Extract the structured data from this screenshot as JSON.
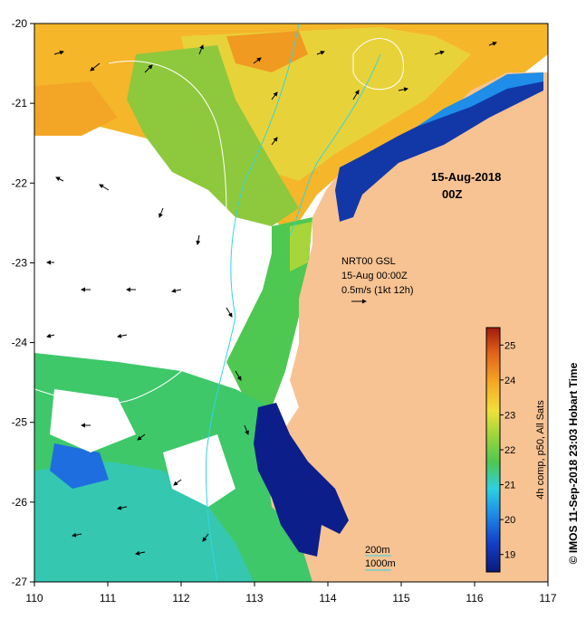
{
  "map": {
    "date_line1": "15-Aug-2018",
    "date_line2": "00Z",
    "nrt_line1": "NRT00 GSL",
    "nrt_line2": "15-Aug 00:00Z",
    "nrt_line3": "0.5m/s (1kt 12h)",
    "contour_200": "200m",
    "contour_1000": "1000m",
    "copyright": "© IMOS 11-Sep-2018 23:03 Hobart Time"
  },
  "colorbar": {
    "title": "4h comp, p50, All Sats",
    "min": 18.5,
    "max": 25.5,
    "ticks": [
      "19",
      "20",
      "21",
      "22",
      "23",
      "24",
      "25"
    ],
    "colors": [
      "#0a1a7a",
      "#1240c8",
      "#1e8ee8",
      "#2cd0e0",
      "#4ec850",
      "#9ed63c",
      "#f0e03a",
      "#f5a623",
      "#e0601a",
      "#a01a0a"
    ]
  },
  "axes": {
    "x_ticks": [
      "110",
      "111",
      "112",
      "113",
      "114",
      "115",
      "116",
      "117"
    ],
    "y_ticks": [
      "-20",
      "-21",
      "-22",
      "-23",
      "-24",
      "-25",
      "-26",
      "-27"
    ]
  },
  "colors": {
    "land": "#f7c393",
    "cloud": "#ffffff",
    "contour_200": "#2fd6e6",
    "contour_1000": "#ffffff"
  }
}
